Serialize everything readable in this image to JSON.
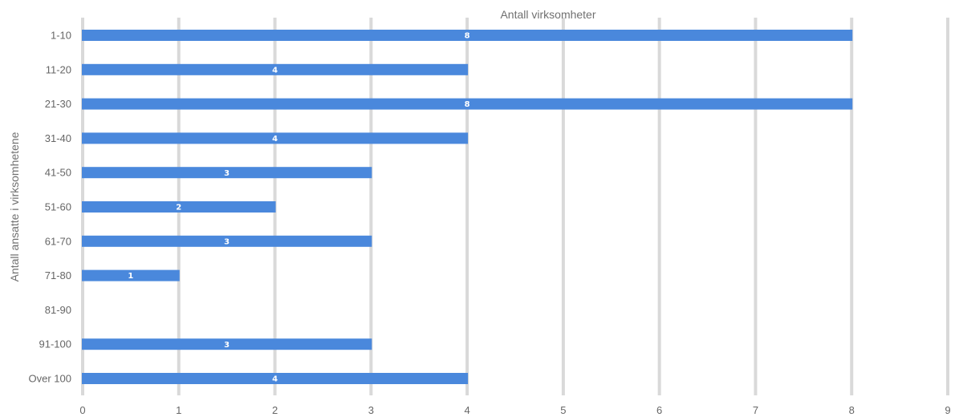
{
  "chart_data": {
    "type": "bar",
    "orientation": "horizontal",
    "categories": [
      "1-10",
      "11-20",
      "21-30",
      "31-40",
      "41-50",
      "51-60",
      "61-70",
      "71-80",
      "81-90",
      "91-100",
      "Over 100"
    ],
    "values": [
      8,
      4,
      8,
      4,
      3,
      2,
      3,
      1,
      null,
      3,
      4
    ],
    "data_labels": [
      "8",
      "4",
      "8",
      "4",
      "3",
      "2",
      "3",
      "1",
      "",
      "3",
      "4"
    ],
    "xlabel": "Antall virksomheter",
    "ylabel": "Antall ansatte i virksomhetene",
    "x_ticks": [
      "0",
      "1",
      "2",
      "3",
      "4",
      "5",
      "6",
      "7",
      "8",
      "9"
    ],
    "xlim": [
      0,
      9
    ],
    "xlabel_position": "top",
    "grid": "vertical",
    "colors": {
      "bar": "#4a88dc",
      "grid": "#d9d9d9",
      "tick_text": "#666666",
      "axis_title": "#707070",
      "data_label": "#ffffff"
    }
  }
}
